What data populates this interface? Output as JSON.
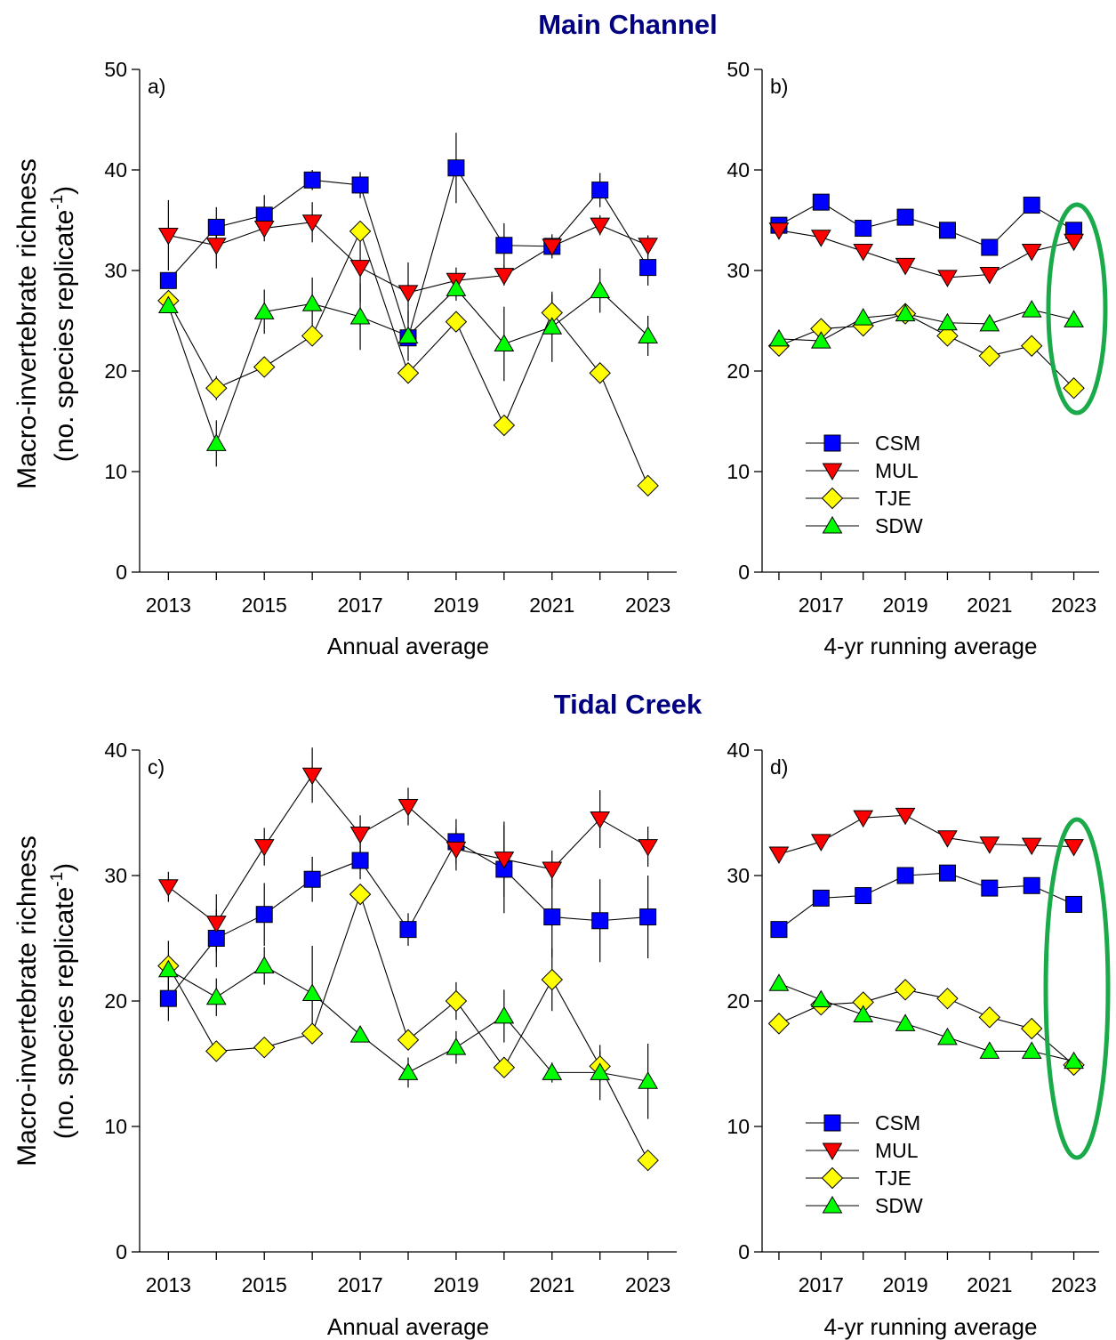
{
  "figure": {
    "main_title": "Main Channel",
    "tidal_title": "Tidal Creek",
    "title_color": "#000080",
    "ylabel_line1": "Macro-invertebrate richness",
    "ylabel_line2_prefix": "(no. species replicate",
    "ylabel_line2_sup": "-1",
    "ylabel_line2_suffix": ")",
    "highlight_color": "#1aaa4a"
  },
  "series_styles": [
    {
      "name": "CSM",
      "marker": "square",
      "color": "#0000ff"
    },
    {
      "name": "MUL",
      "marker": "triangle-down",
      "color": "#ff0000"
    },
    {
      "name": "TJE",
      "marker": "diamond",
      "color": "#ffff00"
    },
    {
      "name": "SDW",
      "marker": "triangle-up",
      "color": "#00ff00"
    }
  ],
  "chart_data": [
    {
      "type": "line",
      "panel_label": "a)",
      "xlabel": "Annual average",
      "x": [
        2013,
        2014,
        2015,
        2016,
        2017,
        2018,
        2019,
        2020,
        2021,
        2022,
        2023
      ],
      "xticks": [
        "2013",
        "2015",
        "2017",
        "2019",
        "2021",
        "2023"
      ],
      "xlim": [
        2012.4,
        2023.6
      ],
      "ylim": [
        0,
        50
      ],
      "yticks": [
        "0",
        "10",
        "20",
        "30",
        "40",
        "50"
      ],
      "legend": false,
      "series": [
        {
          "name": "CSM",
          "values": [
            29.0,
            34.3,
            35.5,
            39.0,
            38.5,
            23.3,
            40.2,
            32.5,
            32.4,
            38.0,
            30.3
          ],
          "errors": [
            0.8,
            2.0,
            2.0,
            1.0,
            1.3,
            0.5,
            3.5,
            2.2,
            0.8,
            1.7,
            1.8
          ]
        },
        {
          "name": "MUL",
          "values": [
            33.5,
            32.5,
            34.2,
            34.8,
            30.3,
            27.8,
            29.0,
            29.5,
            32.4,
            34.5,
            32.5
          ],
          "errors": [
            3.5,
            2.3,
            1.3,
            2.0,
            3.5,
            3.0,
            1.3,
            1.0,
            1.2,
            1.0,
            1.0
          ]
        },
        {
          "name": "TJE",
          "values": [
            27.0,
            18.3,
            20.4,
            23.5,
            33.9,
            19.8,
            24.9,
            14.6,
            25.8,
            19.8,
            8.6
          ],
          "errors": [
            0.5,
            1.2,
            0.5,
            0.5,
            0.5,
            0.5,
            0.6,
            0.5,
            1.8,
            0.5,
            0.5
          ]
        },
        {
          "name": "SDW",
          "values": [
            26.5,
            12.8,
            25.9,
            26.7,
            25.4,
            23.5,
            28.2,
            22.7,
            24.4,
            28.0,
            23.5
          ],
          "errors": [
            0.5,
            2.3,
            2.2,
            2.6,
            3.3,
            2.5,
            1.2,
            3.7,
            3.5,
            2.2,
            2.0
          ]
        }
      ]
    },
    {
      "type": "line",
      "panel_label": "b)",
      "xlabel": "4-yr running average",
      "x": [
        2016,
        2017,
        2018,
        2019,
        2020,
        2021,
        2022,
        2023
      ],
      "xticks": [
        "2017",
        "2019",
        "2021",
        "2023"
      ],
      "xlim": [
        2015.6,
        2023.6
      ],
      "ylim": [
        0,
        50
      ],
      "yticks": [
        "0",
        "10",
        "20",
        "30",
        "40",
        "50"
      ],
      "legend": true,
      "legend_position": "lower-left",
      "series": [
        {
          "name": "CSM",
          "values": [
            34.5,
            36.8,
            34.2,
            35.3,
            34.0,
            32.3,
            36.5,
            34.0
          ]
        },
        {
          "name": "MUL",
          "values": [
            34.0,
            33.3,
            31.9,
            30.5,
            29.3,
            29.6,
            31.9,
            32.9
          ]
        },
        {
          "name": "TJE",
          "values": [
            22.5,
            24.2,
            24.5,
            25.7,
            23.5,
            21.5,
            22.5,
            18.3
          ]
        },
        {
          "name": "SDW",
          "values": [
            23.2,
            23.0,
            25.3,
            25.7,
            24.8,
            24.7,
            26.1,
            25.1
          ]
        }
      ]
    },
    {
      "type": "line",
      "panel_label": "c)",
      "xlabel": "Annual average",
      "x": [
        2013,
        2014,
        2015,
        2016,
        2017,
        2018,
        2019,
        2020,
        2021,
        2022,
        2023
      ],
      "xticks": [
        "2013",
        "2015",
        "2017",
        "2019",
        "2021",
        "2023"
      ],
      "xlim": [
        2012.4,
        2023.6
      ],
      "ylim": [
        0,
        40
      ],
      "yticks": [
        "0",
        "10",
        "20",
        "30",
        "40"
      ],
      "legend": false,
      "series": [
        {
          "name": "CSM",
          "values": [
            20.2,
            25.0,
            26.9,
            29.7,
            31.2,
            25.7,
            32.7,
            30.5,
            26.7,
            26.4,
            26.7
          ],
          "errors": [
            1.8,
            2.3,
            2.5,
            1.8,
            1.5,
            1.3,
            1.8,
            3.5,
            3.2,
            3.3,
            3.3
          ]
        },
        {
          "name": "MUL",
          "values": [
            29.1,
            26.2,
            32.3,
            38.0,
            33.3,
            35.5,
            32.1,
            31.3,
            30.5,
            34.5,
            32.3
          ],
          "errors": [
            1.2,
            2.3,
            1.5,
            2.2,
            1.5,
            1.5,
            1.7,
            3.0,
            1.5,
            2.3,
            1.6
          ]
        },
        {
          "name": "TJE",
          "values": [
            22.8,
            16.0,
            16.3,
            17.4,
            28.5,
            16.9,
            20.0,
            14.7,
            21.7,
            14.8,
            7.3
          ],
          "errors": [
            0.5,
            0.8,
            0.5,
            0.5,
            0.5,
            0.5,
            1.5,
            0.8,
            2.5,
            1.2,
            0.5
          ]
        },
        {
          "name": "SDW",
          "values": [
            22.5,
            20.3,
            22.8,
            20.6,
            17.3,
            14.3,
            16.3,
            18.8,
            14.3,
            14.3,
            13.6
          ],
          "errors": [
            2.3,
            1.5,
            1.5,
            3.8,
            0.5,
            1.2,
            1.3,
            2.1,
            0.8,
            2.2,
            3.0
          ]
        }
      ]
    },
    {
      "type": "line",
      "panel_label": "d)",
      "xlabel": "4-yr running average",
      "x": [
        2016,
        2017,
        2018,
        2019,
        2020,
        2021,
        2022,
        2023
      ],
      "xticks": [
        "2017",
        "2019",
        "2021",
        "2023"
      ],
      "xlim": [
        2015.6,
        2023.6
      ],
      "ylim": [
        0,
        40
      ],
      "yticks": [
        "0",
        "10",
        "20",
        "30",
        "40"
      ],
      "legend": true,
      "legend_position": "lower-left",
      "series": [
        {
          "name": "CSM",
          "values": [
            25.7,
            28.2,
            28.4,
            30.0,
            30.2,
            29.0,
            29.2,
            27.7
          ]
        },
        {
          "name": "MUL",
          "values": [
            31.7,
            32.7,
            34.6,
            34.8,
            33.0,
            32.5,
            32.4,
            32.3
          ]
        },
        {
          "name": "TJE",
          "values": [
            18.2,
            19.7,
            19.9,
            20.9,
            20.2,
            18.7,
            17.8,
            14.9
          ]
        },
        {
          "name": "SDW",
          "values": [
            21.4,
            20.1,
            18.9,
            18.2,
            17.1,
            16.0,
            16.0,
            15.2
          ]
        }
      ]
    }
  ]
}
